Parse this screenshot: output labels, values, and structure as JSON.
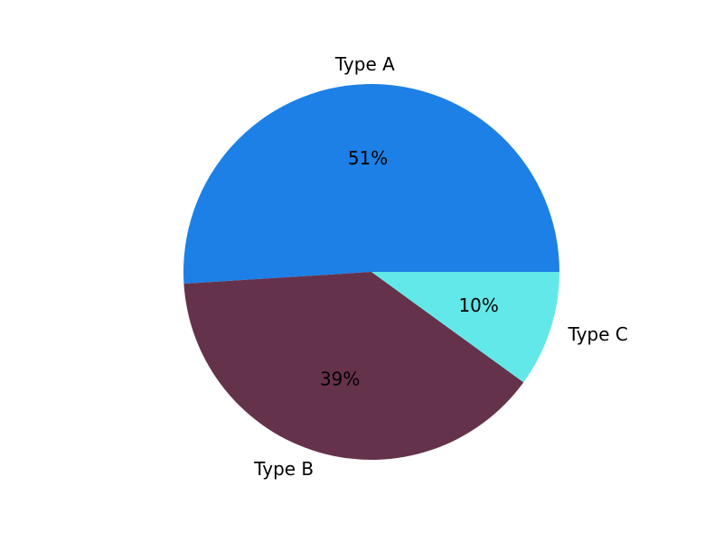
{
  "chart_data": {
    "type": "pie",
    "categories": [
      "Type A",
      "Type B",
      "Type C"
    ],
    "values": [
      51,
      39,
      10
    ],
    "value_labels": [
      "51%",
      "39%",
      "10%"
    ],
    "colors": [
      "#1c80e6",
      "#65324b",
      "#63e8e9"
    ],
    "start_angle_deg": 0,
    "direction": "counterclockwise",
    "legend": "none"
  }
}
